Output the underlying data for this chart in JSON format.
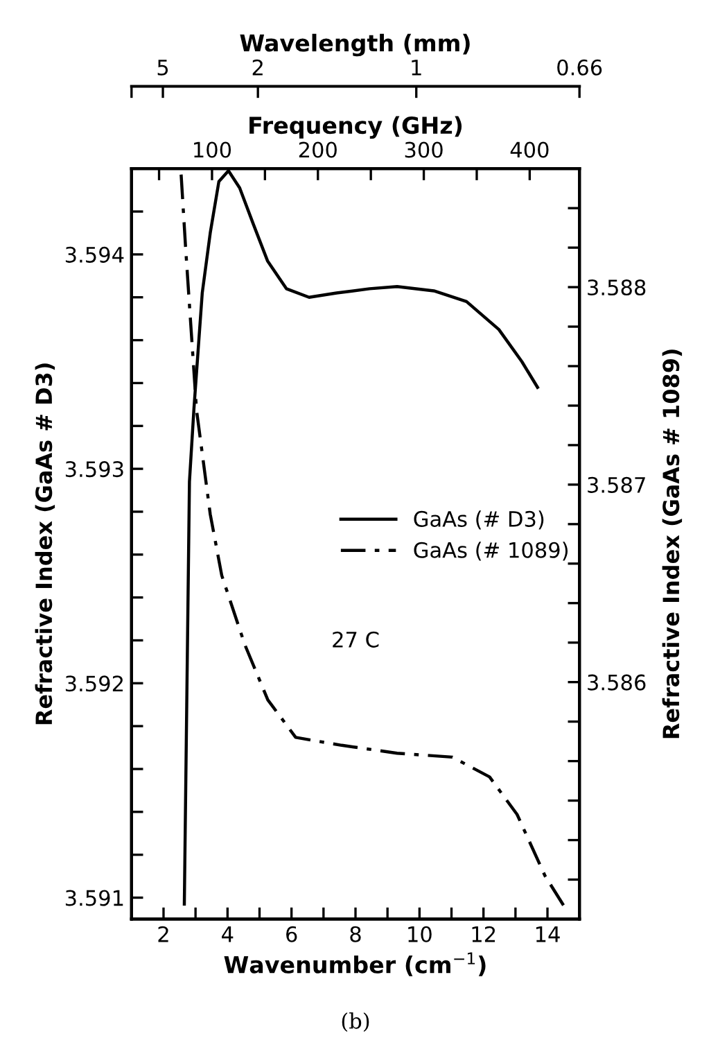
{
  "chart_data": [
    {
      "type": "line",
      "xlabel": "Wavenumber (cm$^{−1}$)",
      "ylabel": "Refractive Index (GaAs # D3)",
      "y2label": "Refractive Index (GaAs # 1089)",
      "x2label": "Frequency (GHz)",
      "xlim": [
        1,
        15
      ],
      "xticks": [
        2,
        {
          "value": 3,
          "label": null
        },
        4,
        {
          "value": 5,
          "label": null
        },
        6,
        {
          "value": 7,
          "label": null
        },
        8,
        {
          "value": 9,
          "label": null
        },
        10,
        {
          "value": 11,
          "label": null
        },
        12,
        {
          "value": 13,
          "label": null
        },
        14
      ],
      "x2lim": [
        24,
        447
      ],
      "x2ticks": [
        {
          "value": 50,
          "label": null
        },
        100,
        {
          "value": 150,
          "label": null
        },
        200,
        {
          "value": 250,
          "label": null
        },
        300,
        {
          "value": 350,
          "label": null
        },
        400
      ],
      "ylim": [
        3.5909,
        3.5944
      ],
      "yticks": [
        3.591,
        {
          "value": 3.5912,
          "label": null
        },
        {
          "value": 3.5914,
          "label": null
        },
        {
          "value": 3.5916,
          "label": null
        },
        {
          "value": 3.5918,
          "label": null
        },
        3.592,
        {
          "value": 3.5922,
          "label": null
        },
        {
          "value": 3.5924,
          "label": null
        },
        {
          "value": 3.5926,
          "label": null
        },
        {
          "value": 3.5928,
          "label": null
        },
        3.593,
        {
          "value": 3.5932,
          "label": null
        },
        {
          "value": 3.5934,
          "label": null
        },
        {
          "value": 3.5936,
          "label": null
        },
        {
          "value": 3.5938,
          "label": null
        },
        3.594,
        {
          "value": 3.5942,
          "label": null
        }
      ],
      "y2lim": [
        3.5848,
        3.5886
      ],
      "y2ticks": [
        {
          "value": 3.585,
          "label": null
        },
        {
          "value": 3.5852,
          "label": null
        },
        {
          "value": 3.5854,
          "label": null
        },
        {
          "value": 3.5856,
          "label": null
        },
        {
          "value": 3.5858,
          "label": null
        },
        3.586,
        {
          "value": 3.5862,
          "label": null
        },
        {
          "value": 3.5864,
          "label": null
        },
        {
          "value": 3.5866,
          "label": null
        },
        {
          "value": 3.5868,
          "label": null
        },
        3.587,
        {
          "value": 3.5872,
          "label": null
        },
        {
          "value": 3.5874,
          "label": null
        },
        {
          "value": 3.5876,
          "label": null
        },
        {
          "value": 3.5878,
          "label": null
        },
        3.588,
        {
          "value": 3.5882,
          "label": null
        },
        {
          "value": 3.5884,
          "label": null
        }
      ],
      "series": [
        {
          "name": "GaAs (# D3)",
          "color": "#000000",
          "line_style": "solid",
          "x": [
            2.65,
            2.81,
            2.95,
            3.21,
            3.46,
            3.73,
            4.03,
            4.38,
            4.81,
            5.25,
            5.84,
            6.55,
            7.41,
            8.44,
            9.3,
            10.45,
            11.47,
            12.48,
            13.2,
            13.69
          ],
          "values": [
            3.59097,
            3.59294,
            3.59328,
            3.59382,
            3.5941,
            3.59434,
            3.59439,
            3.59431,
            3.59414,
            3.59397,
            3.59384,
            3.5938,
            3.59382,
            3.59384,
            3.59385,
            3.59383,
            3.59378,
            3.59365,
            3.5935,
            3.59338
          ]
        },
        {
          "name": "GaAs (# 1089)",
          "color": "#000000",
          "line_style": "dashdot",
          "axis": "y2",
          "x": [
            2.55,
            2.69,
            3.03,
            3.46,
            3.82,
            4.54,
            5.26,
            6.13,
            7.57,
            9.3,
            11.03,
            12.19,
            13.05,
            13.92,
            14.5
          ],
          "values": [
            3.58857,
            3.5882,
            3.58738,
            3.58685,
            3.58654,
            3.58619,
            3.58591,
            3.58572,
            3.58568,
            3.58564,
            3.58562,
            3.58552,
            3.58533,
            3.58502,
            3.58487
          ]
        }
      ],
      "legend": "center right",
      "grid": false,
      "marker": "none",
      "annotations": [
        "27 C",
        "(b)"
      ]
    },
    {
      "type": "other",
      "xlabel": "Wavelength (mm)",
      "annotations": [
        "5",
        "2",
        "1",
        "0.66"
      ]
    }
  ]
}
